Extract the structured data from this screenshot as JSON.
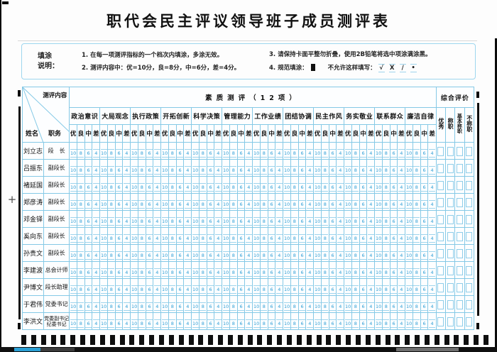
{
  "title": "职代会民主评议领导班子成员测评表",
  "instructions": {
    "label_line1": "填涂",
    "label_line2": "说明：",
    "item1": "1. 在每一项测评指标的一个档次内填涂，多涂无效。",
    "item2": "2. 测评内容中：优=10分，良=8分，中=6分，差=4分。",
    "item3": "3. 请保持卡面平整勿折叠，使用2B铅笔将选中项涂满涂黑。",
    "item4_label": "4. 规范填涂：",
    "forbidden_label": "不允许这样填写：",
    "forbidden_marks": [
      "√",
      "X",
      "/",
      "•"
    ]
  },
  "table": {
    "corner": {
      "top": "测评内容",
      "name": "姓名",
      "duty": "职务"
    },
    "quality_header": "素质测评（12项）",
    "comprehensive_header": "综合评价",
    "categories": [
      "政治意识",
      "大局观念",
      "执行政策",
      "开拓创新",
      "科学决策",
      "管理能力",
      "工作业绩",
      "团结协调",
      "民主作风",
      "务实敬业",
      "联系群众",
      "廉洁自律"
    ],
    "grade_labels": [
      "优",
      "良",
      "中",
      "差"
    ],
    "grade_values": [
      "10",
      "8",
      "6",
      "4"
    ],
    "comprehensive_options": [
      "优秀",
      "称职",
      "基本称职",
      "不称职"
    ],
    "rows": [
      {
        "name": "刘立志",
        "duty": "段　长"
      },
      {
        "name": "吕振东",
        "duty": "副段长"
      },
      {
        "name": "褚延国",
        "duty": "副段长"
      },
      {
        "name": "郑彦涛",
        "duty": "副段长"
      },
      {
        "name": "邓金铎",
        "duty": "副段长"
      },
      {
        "name": "奚向东",
        "duty": "副段长"
      },
      {
        "name": "孙贵文",
        "duty": "副段长"
      },
      {
        "name": "李建波",
        "duty": "总会计师"
      },
      {
        "name": "尹博文",
        "duty": "段长助理"
      },
      {
        "name": "于君伟",
        "duty": "党委书记"
      },
      {
        "name": "李洪文",
        "duty": "党委副书记纪委书记"
      }
    ]
  },
  "colors": {
    "accent_blue": "#2f9fd6",
    "grid_blue": "#85c9e6",
    "shade_blue": "#cfe9f6",
    "box_border_blue": "#9dd6ee",
    "strip_blue": "#2aa0d5",
    "mark_black": "#0e0e0e"
  },
  "timing_mark_count": 48
}
